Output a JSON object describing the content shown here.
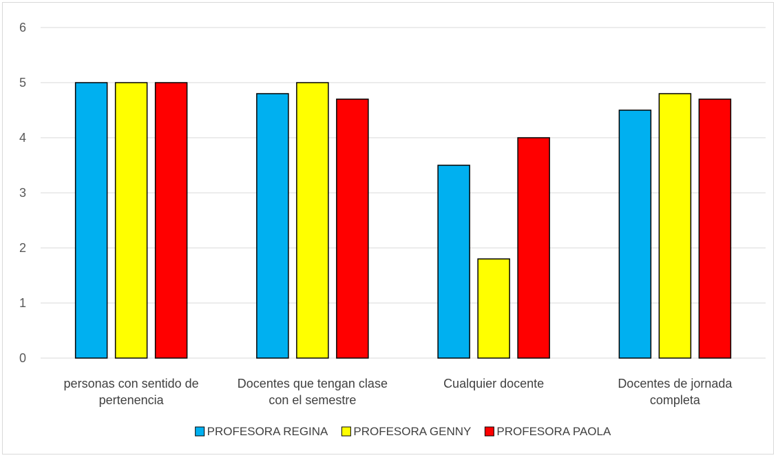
{
  "chart_data": {
    "type": "bar",
    "categories": [
      [
        "personas con sentido de",
        "pertenencia"
      ],
      [
        "Docentes que tengan clase",
        "con el semestre"
      ],
      [
        "Cualquier docente"
      ],
      [
        "Docentes de jornada",
        "completa"
      ]
    ],
    "series": [
      {
        "name": "PROFESORA REGINA",
        "color": "#00b0f0",
        "values": [
          5,
          4.8,
          3.5,
          4.5
        ]
      },
      {
        "name": "PROFESORA GENNY",
        "color": "#ffff00",
        "values": [
          5,
          5,
          1.8,
          4.8
        ]
      },
      {
        "name": "PROFESORA PAOLA",
        "color": "#ff0000",
        "values": [
          5,
          4.7,
          4,
          4.7
        ]
      }
    ],
    "ylim": [
      0,
      6
    ],
    "yticks": [
      0,
      1,
      2,
      3,
      4,
      5,
      6
    ],
    "grid": true,
    "legend": "bottom",
    "title": "",
    "xlabel": "",
    "ylabel": ""
  }
}
